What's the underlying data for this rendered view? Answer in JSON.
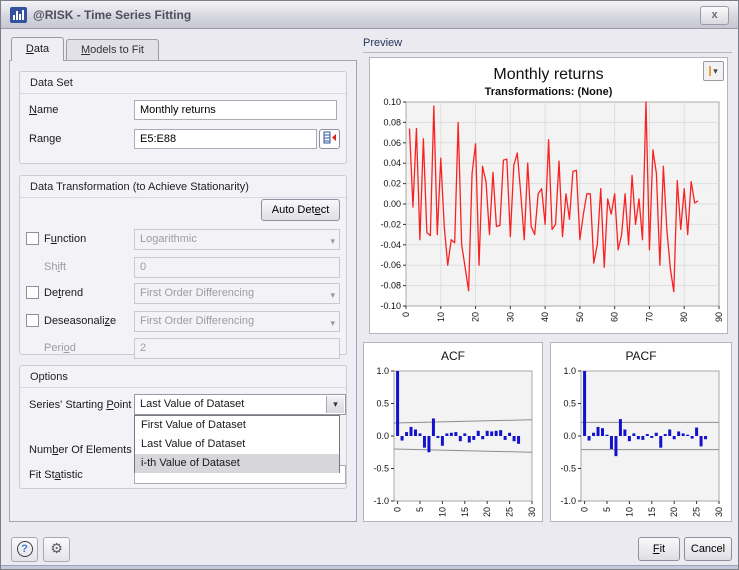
{
  "window": {
    "title": "@RISK - Time Series Fitting",
    "close_label": "x"
  },
  "icons": {
    "app": "bar-chart",
    "close": "x",
    "chevron": "▾",
    "help": "?",
    "gear": "⚙",
    "range_picker": "cell-range-picker"
  },
  "tabs": {
    "data": "Data",
    "models": "Models to Fit"
  },
  "preview_label": "Preview",
  "data_set": {
    "legend": "Data Set",
    "name_label": "Name",
    "name_value": "Monthly returns",
    "range_label": "Range",
    "range_value": "E5:E88"
  },
  "transformation": {
    "legend": "Data Transformation (to Achieve Stationarity)",
    "auto_detect": "Auto Detect",
    "function_label": "Function",
    "function_value": "Logarithmic",
    "shift_label": "Shift",
    "shift_value": "0",
    "detrend_label": "Detrend",
    "detrend_value": "First Order Differencing",
    "deseasonalize_label": "Deseasonalize",
    "deseasonalize_value": "First Order Differencing",
    "period_label": "Period",
    "period_value": "2"
  },
  "options": {
    "legend": "Options",
    "starting_point_label": "Series' Starting Point",
    "starting_point_value": "Last Value of Dataset",
    "elements_label": "Number Of Elements",
    "fit_statistic_label": "Fit Statistic",
    "dropdown_items": [
      "First Value of Dataset",
      "Last Value of Dataset",
      "i-th Value of Dataset"
    ],
    "dropdown_selected": "i-th Value of Dataset"
  },
  "footer": {
    "fit": "Fit",
    "cancel": "Cancel"
  },
  "colors": {
    "line": "#f82222",
    "stem": "#1212cc",
    "band": "#8c8c8c",
    "plot_bg": "#f4f3f3",
    "plot_border": "#a8a8a8",
    "grid": "#dedede"
  },
  "chart_data": [
    {
      "id": "timeseries",
      "type": "line",
      "title": "Monthly returns",
      "subtitle": "Transformations: (None)",
      "x_range": [
        0,
        90
      ],
      "y_range": [
        -0.1,
        0.1
      ],
      "x_ticks": [
        0,
        10,
        20,
        30,
        40,
        50,
        60,
        70,
        80,
        90
      ],
      "y_ticks": [
        0.1,
        0.08,
        0.06,
        0.04,
        0.02,
        0.0,
        -0.02,
        -0.04,
        -0.06,
        -0.08,
        -0.1
      ],
      "y_decimals": 2,
      "grid": true,
      "x_start": 1,
      "legend": "none",
      "values": [
        0.074,
        -0.003,
        0.074,
        -0.035,
        0.064,
        -0.028,
        -0.031,
        0.096,
        -0.03,
        0.045,
        -0.022,
        -0.06,
        -0.035,
        -0.038,
        0.08,
        -0.04,
        -0.062,
        -0.085,
        0.03,
        0.059,
        -0.06,
        0.037,
        0.022,
        -0.03,
        0.031,
        -0.022,
        -0.021,
        0.043,
        0.044,
        -0.032,
        0.038,
        0.05,
        0.01,
        -0.035,
        0.04,
        -0.022,
        -0.03,
        0.01,
        0.015,
        -0.02,
        0.063,
        -0.025,
        -0.02,
        0.042,
        -0.032,
        0.01,
        -0.015,
        0.032,
        0.033,
        -0.035,
        -0.01,
        0.01,
        0.01,
        -0.058,
        -0.04,
        0.015,
        -0.062,
        0.005,
        -0.01,
        0.01,
        -0.045,
        -0.03,
        0.01,
        -0.04,
        0.028,
        -0.02,
        0.005,
        -0.035,
        0.1,
        -0.045,
        0.053,
        0.03,
        -0.06,
        0.037,
        -0.025,
        -0.063,
        -0.086,
        0.023,
        -0.025,
        0.015,
        -0.03,
        0.022,
        0.001,
        0.003
      ]
    },
    {
      "id": "acf",
      "type": "stem",
      "title": "ACF",
      "x_range": [
        -0.8,
        30
      ],
      "y_range": [
        -1.0,
        1.0
      ],
      "x_ticks": [
        0,
        5,
        10,
        15,
        20,
        25,
        30
      ],
      "y_ticks": [
        1.0,
        0.5,
        0.0,
        -0.5,
        -1.0
      ],
      "y_decimals": 1,
      "grid": false,
      "band": {
        "start": 0.2,
        "end": 0.25
      },
      "values": [
        1.0,
        -0.07,
        0.06,
        0.14,
        0.1,
        0.04,
        -0.18,
        -0.25,
        0.27,
        -0.03,
        -0.15,
        0.04,
        0.05,
        0.06,
        -0.08,
        0.04,
        -0.1,
        -0.06,
        0.08,
        -0.05,
        0.08,
        0.07,
        0.08,
        0.09,
        -0.06,
        0.05,
        -0.08,
        -0.12
      ]
    },
    {
      "id": "pacf",
      "type": "stem",
      "title": "PACF",
      "x_range": [
        -0.8,
        30
      ],
      "y_range": [
        -1.0,
        1.0
      ],
      "x_ticks": [
        0,
        5,
        10,
        15,
        20,
        25,
        30
      ],
      "y_ticks": [
        1.0,
        0.5,
        0.0,
        -0.5,
        -1.0
      ],
      "y_decimals": 1,
      "grid": false,
      "band": {
        "start": 0.21,
        "end": 0.21
      },
      "values": [
        1.0,
        -0.07,
        0.05,
        0.14,
        0.12,
        0.02,
        -0.2,
        -0.31,
        0.26,
        0.1,
        -0.08,
        0.04,
        -0.05,
        -0.06,
        0.03,
        -0.03,
        0.05,
        -0.18,
        0.03,
        0.1,
        -0.05,
        0.07,
        0.04,
        0.02,
        -0.04,
        0.13,
        -0.16,
        -0.05
      ]
    }
  ]
}
